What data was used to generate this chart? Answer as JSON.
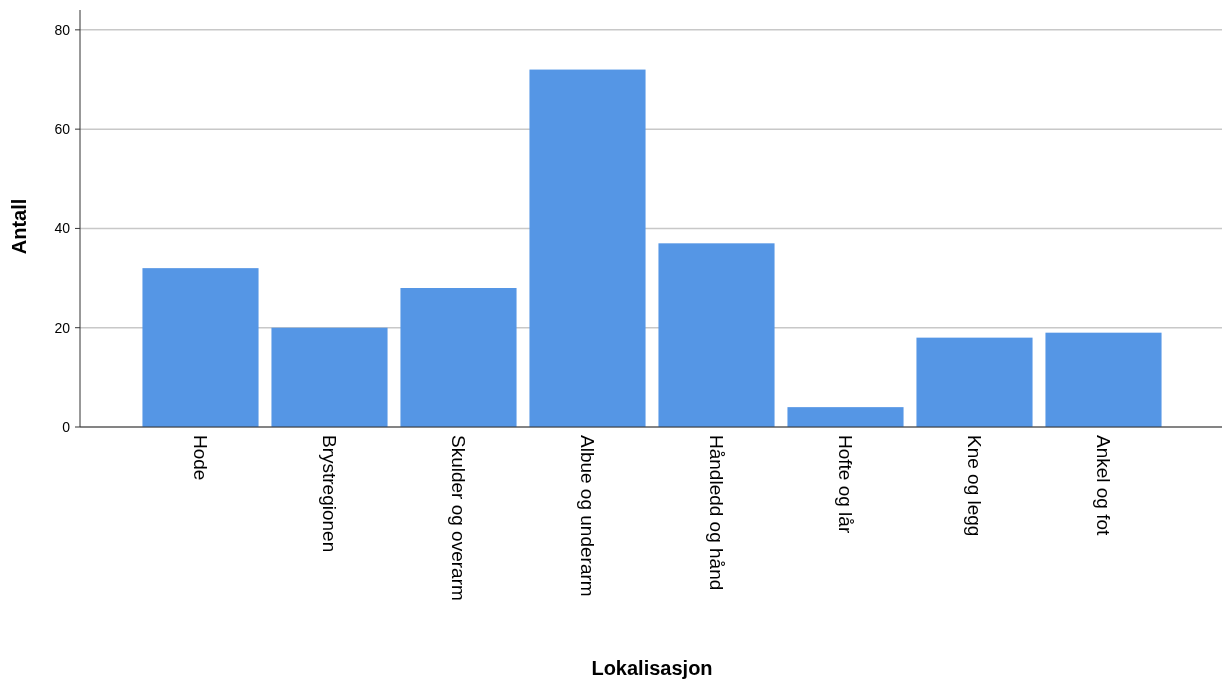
{
  "chart_data": {
    "type": "bar",
    "xlabel": "Lokalisasjon",
    "ylabel": "Antall",
    "categories": [
      "Hode",
      "Brystregionen",
      "Skulder og overarm",
      "Albue og underarm",
      "Håndledd og hånd",
      "Hofte og lår",
      "Kne og legg",
      "Ankel og fot"
    ],
    "values": [
      32,
      20,
      28,
      72,
      37,
      4,
      18,
      19
    ],
    "color": "#5596e5",
    "ylim": [
      0,
      84
    ],
    "yticks": [
      0,
      20,
      40,
      60,
      80
    ],
    "grid": "y"
  }
}
